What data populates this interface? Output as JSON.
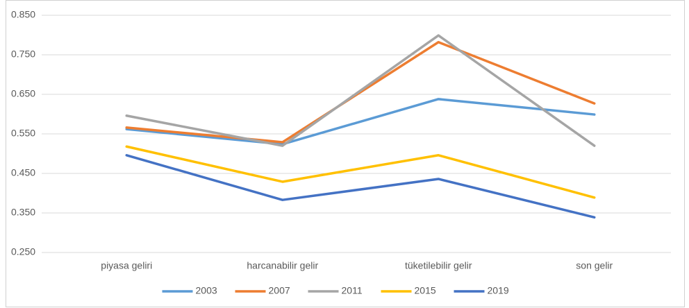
{
  "chart_data": {
    "type": "line",
    "categories": [
      "piyasa geliri",
      "harcanabilir gelir",
      "tüketilebilir gelir",
      "son gelir"
    ],
    "series": [
      {
        "name": "2003",
        "color": "#5b9bd5",
        "values": [
          0.562,
          0.524,
          0.638,
          0.599
        ]
      },
      {
        "name": "2007",
        "color": "#ed7d31",
        "values": [
          0.566,
          0.529,
          0.782,
          0.627
        ]
      },
      {
        "name": "2011",
        "color": "#a5a5a5",
        "values": [
          0.596,
          0.52,
          0.799,
          0.52
        ]
      },
      {
        "name": "2015",
        "color": "#ffc000",
        "values": [
          0.518,
          0.429,
          0.496,
          0.389
        ]
      },
      {
        "name": "2019",
        "color": "#4472c4",
        "values": [
          0.496,
          0.383,
          0.436,
          0.339
        ]
      }
    ],
    "ylim": [
      0.25,
      0.85
    ],
    "yticks": [
      {
        "value": 0.25,
        "label": "0.250"
      },
      {
        "value": 0.35,
        "label": "0.350"
      },
      {
        "value": 0.45,
        "label": "0.450"
      },
      {
        "value": 0.55,
        "label": "0.550"
      },
      {
        "value": 0.65,
        "label": "0.650"
      },
      {
        "value": 0.75,
        "label": "0.750"
      },
      {
        "value": 0.85,
        "label": "0.850"
      }
    ],
    "grid": true
  }
}
